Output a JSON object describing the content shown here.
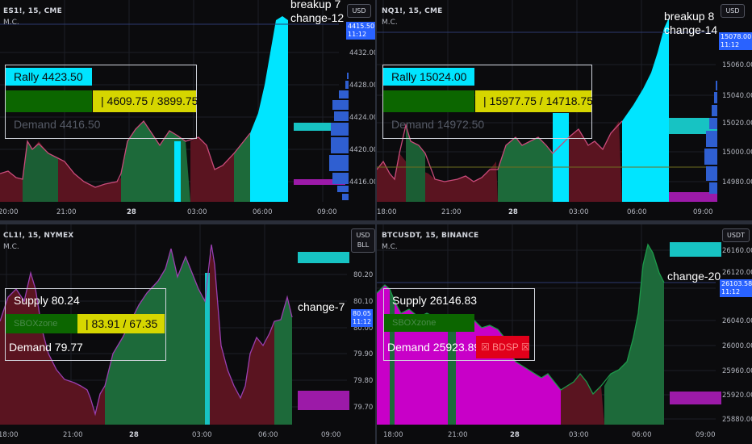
{
  "colors": {
    "bull": "#1b6b37",
    "bear": "#6e1622",
    "cyan": "#00e5ff",
    "teal": "#17c3c3",
    "magenta": "#d400d4",
    "yellow": "#d6d600",
    "green_box": "#0c6600",
    "red_box": "#e0001a",
    "price_tag": "#2962ff"
  },
  "panels": [
    {
      "symbol": "ES1!, 15, CME",
      "sub": "M.C.",
      "currency": "USD",
      "price_tag": [
        "4415.50",
        "11:12"
      ],
      "y_ticks": [
        "4432.00",
        "4428.00",
        "4424.00",
        "4420.00",
        "4416.00"
      ],
      "x_ticks": [
        "20:00",
        "21:00",
        "28",
        "03:00",
        "06:00",
        "09:00"
      ],
      "annotation": [
        "breakup 7",
        "change-12"
      ],
      "rows": {
        "top": "Rally  4423.50",
        "mid": "|  4609.75 / 3899.75",
        "bottom": "Demand  4416.50"
      }
    },
    {
      "symbol": "NQ1!, 15, CME",
      "sub": "M.C.",
      "currency": "USD",
      "price_tag": [
        "15078.00",
        "11:12"
      ],
      "y_ticks": [
        "15060.00",
        "15040.00",
        "15020.00",
        "15000.00",
        "14980.00"
      ],
      "x_ticks": [
        "18:00",
        "21:00",
        "28",
        "03:00",
        "06:00",
        "09:00"
      ],
      "annotation": [
        "breakup 8",
        "change-14"
      ],
      "rows": {
        "top": "Rally  15024.00",
        "mid": "|  15977.75 / 14718.75",
        "bottom": "Demand  14972.50"
      }
    },
    {
      "symbol": "CL1!, 15, NYMEX",
      "sub": "M.C.",
      "currency": [
        "USD",
        "BLL"
      ],
      "price_tag": [
        "80.05",
        "11:12"
      ],
      "y_ticks": [
        "80.20",
        "80.10",
        "80.00",
        "79.90",
        "79.80",
        "79.70"
      ],
      "x_ticks": [
        "18:00",
        "21:00",
        "28",
        "03:00",
        "06:00",
        "09:00"
      ],
      "annotation": [
        "change-7"
      ],
      "rows": {
        "top": "Supply  80.24",
        "mid_faded": "SBOXzone",
        "mid": "|  83.91 / 67.35",
        "bottom": "Demand  79.77"
      }
    },
    {
      "symbol": "BTCUSDT, 15, BINANCE",
      "sub": "M.C.",
      "currency": "USDT",
      "price_tag": [
        "26103.58",
        "11:12"
      ],
      "y_ticks": [
        "26120.00",
        "26080.00",
        "26040.00",
        "26000.00",
        "25960.00",
        "25920.00",
        "25880.00"
      ],
      "y_tick_top": "26160.00",
      "x_ticks": [
        "18:00",
        "21:00",
        "28",
        "03:00",
        "06:00",
        "09:00"
      ],
      "annotation": [
        "change-20"
      ],
      "rows": {
        "top": "Supply  26146.83",
        "mid_faded": "SBOXzone",
        "bottom": "Demand  25923.89",
        "alert": "☒ BDSP ☒"
      }
    }
  ]
}
